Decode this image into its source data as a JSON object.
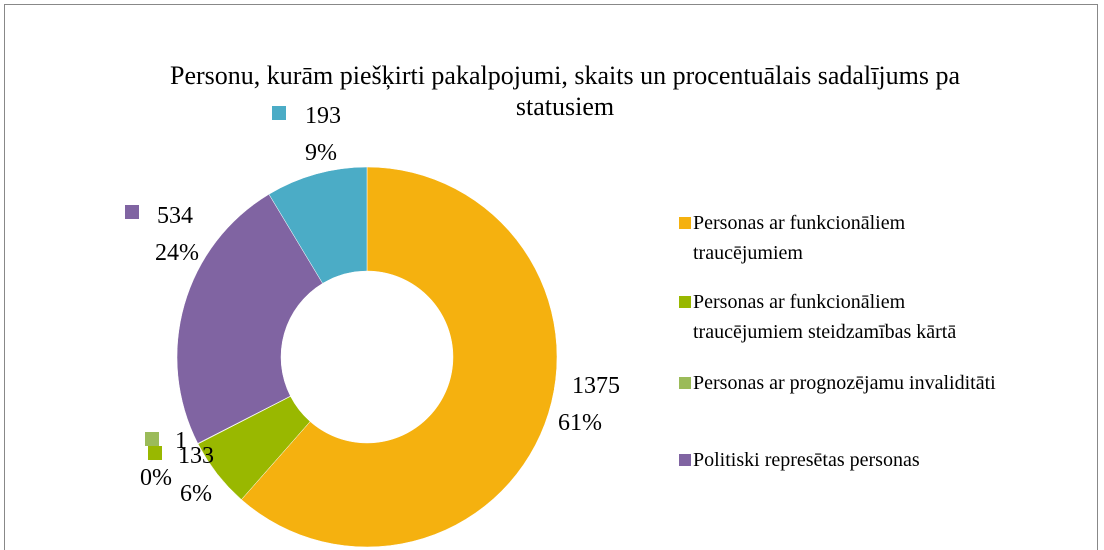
{
  "chart_data": {
    "type": "donut",
    "title": "Personu, kurām piešķirti pakalpojumi, skaits un procentuālais sadalījums pa statusiem",
    "categories": [
      "Personas ar funkcionāliem traucējumiem",
      "Personas ar funkcionāliem traucējumiem steidzamības kārtā",
      "Personas ar prognozējamu invaliditāti",
      "Politiski represētas personas",
      null
    ],
    "values": [
      1375,
      133,
      1,
      534,
      193
    ],
    "percent_labels": [
      "61%",
      "6%",
      "0%",
      "24%",
      "9%"
    ],
    "colors": [
      "#f5b10f",
      "#99b800",
      "#9bbb59",
      "#8064a2",
      "#4bacc6"
    ],
    "legend": "right"
  }
}
